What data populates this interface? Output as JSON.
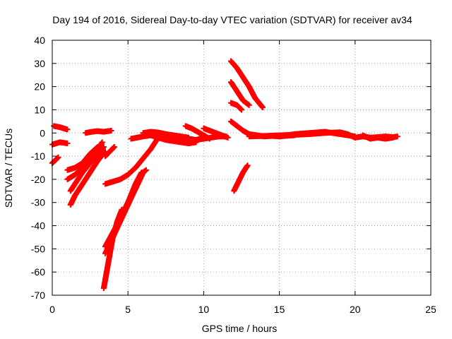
{
  "chart_data": {
    "type": "scatter",
    "title": "Day 194 of 2016, Sidereal Day-to-day VTEC variation (SDTVAR) for receiver av34",
    "xlabel": "GPS time / hours",
    "ylabel": "SDTVAR / TECUs",
    "xlim": [
      0,
      25
    ],
    "ylim": [
      -70,
      40
    ],
    "xticks": [
      0,
      5,
      10,
      15,
      20,
      25
    ],
    "yticks": [
      -70,
      -60,
      -50,
      -40,
      -30,
      -20,
      -10,
      0,
      10,
      20,
      30,
      40
    ],
    "grid": true,
    "series_color": "#ff0000",
    "marker": "plus",
    "series": [
      {
        "x": [
          0.0,
          0.4
        ],
        "y": [
          -13,
          -10.5
        ]
      },
      {
        "x": [
          0.0,
          0.5,
          1.0
        ],
        "y": [
          -5,
          -4,
          -4.5
        ]
      },
      {
        "x": [
          0.1,
          0.5,
          1.0
        ],
        "y": [
          3,
          2.5,
          1.5
        ]
      },
      {
        "x": [
          1.0,
          1.5,
          2.0,
          2.5,
          3.0
        ],
        "y": [
          -16,
          -15,
          -13,
          -9,
          -6
        ]
      },
      {
        "x": [
          1.0,
          1.5,
          2.0,
          2.5,
          3.0,
          3.3
        ],
        "y": [
          -20,
          -18,
          -15,
          -11,
          -7,
          -4
        ]
      },
      {
        "x": [
          1.2,
          1.5,
          2.0,
          2.5,
          3.0,
          3.4
        ],
        "y": [
          -25,
          -22,
          -17,
          -13,
          -9,
          -6
        ]
      },
      {
        "x": [
          1.2,
          1.5,
          2.0,
          2.5,
          3.0,
          3.5
        ],
        "y": [
          -31,
          -27,
          -22,
          -17,
          -12,
          -8
        ]
      },
      {
        "x": [
          2.2,
          2.6,
          3.0,
          3.4,
          3.9
        ],
        "y": [
          0,
          0.5,
          0.8,
          0.5,
          1
        ]
      },
      {
        "x": [
          3.5,
          3.8,
          4.1
        ],
        "y": [
          -10,
          -8,
          -6
        ]
      },
      {
        "x": [
          3.5,
          4.0,
          4.5,
          5.0,
          5.5,
          6.0,
          6.5,
          7.0
        ],
        "y": [
          -22,
          -21,
          -20,
          -18,
          -15,
          -11,
          -7,
          -2
        ]
      },
      {
        "x": [
          3.5,
          4.0,
          4.5,
          5.0,
          5.5,
          6.0,
          6.2
        ],
        "y": [
          -49,
          -43,
          -37,
          -30,
          -24,
          -17,
          -16
        ]
      },
      {
        "x": [
          3.5,
          4.0,
          4.5,
          5.0,
          5.5,
          5.9
        ],
        "y": [
          -52,
          -45,
          -37,
          -30,
          -22,
          -17
        ]
      },
      {
        "x": [
          3.4,
          3.7,
          4.0,
          4.3,
          4.6
        ],
        "y": [
          -67,
          -56,
          -45,
          -38,
          -33
        ]
      },
      {
        "x": [
          4.0,
          4.5,
          5.0,
          5.5,
          6.0
        ],
        "y": [
          -45,
          -38,
          -31,
          -24,
          -17
        ]
      },
      {
        "x": [
          5.2,
          5.6,
          6.0,
          6.5,
          7.0,
          7.5,
          8.0,
          8.5,
          9.0,
          9.5,
          10.0
        ],
        "y": [
          -2.5,
          -2,
          -1.5,
          -1,
          -0.5,
          -1,
          -1.5,
          -2,
          -2.5,
          -3,
          -2
        ]
      },
      {
        "x": [
          6.0,
          6.5,
          7.0,
          7.5,
          8.0,
          8.5,
          9.0
        ],
        "y": [
          0,
          0.5,
          0.2,
          -0.5,
          -1,
          -1.5,
          -2
        ]
      },
      {
        "x": [
          6.5,
          7.0,
          7.5,
          8.0,
          8.5,
          9.0,
          9.5
        ],
        "y": [
          -1,
          -2,
          -3,
          -3.5,
          -4,
          -4.5,
          -4
        ]
      },
      {
        "x": [
          7.0,
          7.5,
          8.0,
          8.5,
          9.0,
          9.5,
          10.0,
          10.5,
          11.0,
          11.5
        ],
        "y": [
          -2,
          -2.5,
          -3,
          -3.2,
          -3.5,
          -3,
          -2.5,
          -2,
          -1.5,
          -1.5
        ]
      },
      {
        "x": [
          8.8,
          9.2,
          9.6,
          10.0,
          10.4
        ],
        "y": [
          3,
          2,
          0.5,
          -1,
          -2.5
        ]
      },
      {
        "x": [
          10.0,
          10.4,
          10.8,
          11.2,
          11.6
        ],
        "y": [
          2,
          1,
          0,
          -1,
          -2
        ]
      },
      {
        "x": [
          11.8,
          12.2,
          12.6,
          13.0,
          13.4,
          13.9
        ],
        "y": [
          31,
          28,
          24,
          20,
          15,
          11
        ]
      },
      {
        "x": [
          11.8,
          12.2,
          12.6,
          13.0
        ],
        "y": [
          22,
          18,
          14,
          12
        ]
      },
      {
        "x": [
          11.8,
          12.2,
          12.5
        ],
        "y": [
          13,
          12,
          10
        ]
      },
      {
        "x": [
          11.8,
          12.2,
          12.6,
          13.0,
          13.5,
          14.0,
          14.5,
          15.0,
          15.5,
          16.0
        ],
        "y": [
          5,
          3,
          1,
          -0.5,
          -1,
          -1.5,
          -1.3,
          -1.5,
          -1.2,
          -1
        ]
      },
      {
        "x": [
          12.0,
          12.3,
          12.6,
          12.9
        ],
        "y": [
          -25,
          -21,
          -17,
          -14
        ]
      },
      {
        "x": [
          13.0,
          14.0,
          15.0,
          16.0,
          17.0,
          18.0,
          19.0,
          19.5,
          20.0
        ],
        "y": [
          -1.5,
          -1.3,
          -1,
          -0.8,
          -0.5,
          0,
          0.3,
          -0.5,
          -2
        ]
      },
      {
        "x": [
          15.5,
          16.0,
          17.0,
          18.0,
          19.0,
          20.0
        ],
        "y": [
          -1,
          -0.5,
          0,
          0.5,
          -0.5,
          -1.5
        ]
      },
      {
        "x": [
          20.0,
          20.5,
          21.0,
          21.5,
          22.0,
          22.5,
          22.8
        ],
        "y": [
          -2,
          -1.5,
          -2,
          -1.8,
          -1.5,
          -1.8,
          -1.5
        ]
      },
      {
        "x": [
          20.5,
          21.0,
          21.5,
          22.0,
          22.5
        ],
        "y": [
          -1,
          -2.5,
          -2,
          -2.5,
          -2
        ]
      }
    ]
  }
}
